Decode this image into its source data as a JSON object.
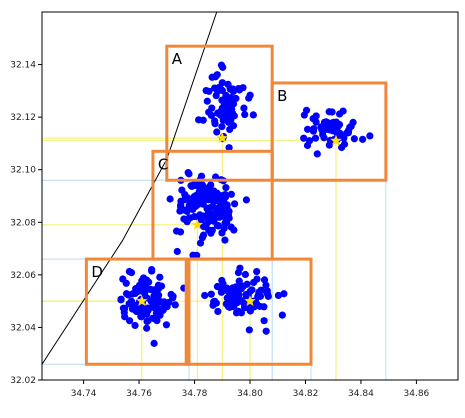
{
  "chart_data": {
    "type": "scatter",
    "title": "",
    "xlabel": "",
    "ylabel": "",
    "xlim": [
      34.725,
      34.875
    ],
    "ylim": [
      32.02,
      32.16
    ],
    "xticks": [
      "34.74",
      "34.76",
      "34.78",
      "34.80",
      "34.82",
      "34.84",
      "34.86"
    ],
    "yticks": [
      "32.02",
      "32.04",
      "32.06",
      "32.08",
      "32.10",
      "32.12",
      "32.14"
    ],
    "grid": false,
    "colors": {
      "points": "#0000ff",
      "boxes": "#f0883a",
      "centroids": "#ffe000",
      "guide_yellow": "#f0f060",
      "guide_blue": "#b0d8f0",
      "boundary": "#000000"
    },
    "boundary_line": [
      [
        34.725,
        32.026
      ],
      [
        34.754,
        32.073
      ],
      [
        34.77,
        32.104
      ],
      [
        34.788,
        32.16
      ]
    ],
    "regions": [
      {
        "name": "A",
        "x0": 34.77,
        "x1": 34.808,
        "y0": 32.096,
        "y1": 32.147,
        "centroid": [
          34.79,
          32.112
        ]
      },
      {
        "name": "B",
        "x0": 34.808,
        "x1": 34.849,
        "y0": 32.096,
        "y1": 32.133,
        "centroid": [
          34.831,
          32.111
        ]
      },
      {
        "name": "C",
        "x0": 34.765,
        "x1": 34.808,
        "y0": 32.066,
        "y1": 32.107,
        "centroid": [
          34.781,
          32.079
        ]
      },
      {
        "name": "D",
        "x0": 34.741,
        "x1": 34.778,
        "y0": 32.026,
        "y1": 32.066,
        "centroid": [
          34.761,
          32.05
        ]
      },
      {
        "name": "",
        "x0": 34.777,
        "x1": 34.822,
        "y0": 32.026,
        "y1": 32.066,
        "centroid": [
          34.8,
          32.05
        ]
      }
    ],
    "point_clusters": [
      {
        "center": [
          34.791,
          32.125
        ],
        "spread": [
          0.006,
          0.011
        ],
        "count": 80
      },
      {
        "center": [
          34.83,
          32.116
        ],
        "spread": [
          0.008,
          0.006
        ],
        "count": 70
      },
      {
        "center": [
          34.784,
          32.086
        ],
        "spread": [
          0.009,
          0.01
        ],
        "count": 150
      },
      {
        "center": [
          34.762,
          32.05
        ],
        "spread": [
          0.008,
          0.008
        ],
        "count": 100
      },
      {
        "center": [
          34.797,
          32.052
        ],
        "spread": [
          0.01,
          0.007
        ],
        "count": 100
      }
    ]
  }
}
